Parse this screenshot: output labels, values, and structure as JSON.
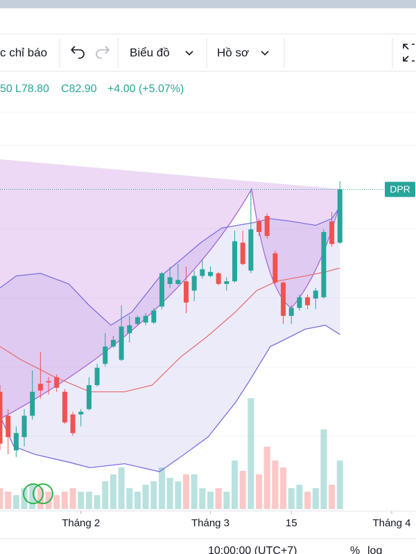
{
  "toolbar": {
    "indicators": "c chỉ báo",
    "chart": "Biểu đồ",
    "profile": "Hồ sơ"
  },
  "footer": {
    "time": "10:00:00 (UTC+7)",
    "percent": "%",
    "log": "log"
  },
  "chart_data": {
    "type": "candlestick",
    "legend": [
      "50",
      "L78.80",
      "C82.90",
      "+4.00 (+5.07%)"
    ],
    "symbol": "DPR",
    "up_color": "#26a69a",
    "down_color": "#ef5350",
    "xlim": [
      0,
      51.4
    ],
    "xticks": [
      {
        "value": 10,
        "label": "Tháng 2"
      },
      {
        "value": 26,
        "label": "Tháng 3"
      },
      {
        "value": 36,
        "label": "15"
      },
      {
        "value": 48.4,
        "label": "Tháng 4"
      }
    ],
    "ylim": [
      58.9,
      91.4
    ],
    "x": [
      0,
      1,
      2,
      3,
      4,
      5,
      6,
      7,
      8,
      9,
      10,
      11,
      12,
      13,
      14,
      15,
      16,
      17,
      18,
      19,
      20,
      21,
      22,
      23,
      24,
      25,
      26,
      27,
      28,
      29,
      30,
      31,
      32,
      33,
      34,
      35,
      36,
      37,
      38,
      39,
      40,
      41,
      42
    ],
    "candles": [
      [
        67.7,
        68.2,
        63.3,
        63.8
      ],
      [
        65.9,
        66.4,
        63.0,
        64.3
      ],
      [
        63.3,
        65.1,
        62.8,
        64.6
      ],
      [
        64.3,
        66.4,
        63.6,
        65.9
      ],
      [
        65.9,
        69.3,
        65.6,
        67.7
      ],
      [
        68.3,
        70.7,
        67.2,
        67.8
      ],
      [
        68.5,
        68.8,
        67.5,
        68.4
      ],
      [
        68.8,
        69.0,
        67.7,
        68.0
      ],
      [
        67.7,
        67.9,
        65.3,
        65.4
      ],
      [
        66.0,
        66.2,
        64.4,
        64.6
      ],
      [
        66.0,
        66.4,
        65.1,
        66.2
      ],
      [
        66.4,
        68.8,
        66.3,
        68.2
      ],
      [
        68.2,
        69.8,
        68.1,
        69.5
      ],
      [
        69.8,
        72.1,
        69.6,
        71.1
      ],
      [
        71.1,
        71.9,
        71.0,
        71.6
      ],
      [
        70.1,
        74.2,
        70.0,
        72.6
      ],
      [
        72.1,
        73.4,
        71.4,
        72.7
      ],
      [
        72.8,
        73.4,
        72.7,
        73.3
      ],
      [
        72.9,
        73.6,
        72.7,
        73.4
      ],
      [
        72.9,
        74.0,
        72.8,
        73.8
      ],
      [
        74.1,
        76.7,
        73.9,
        76.6
      ],
      [
        75.8,
        77.1,
        75.5,
        76.3
      ],
      [
        75.8,
        77.3,
        75.7,
        76.1
      ],
      [
        76.0,
        77.1,
        73.6,
        74.4
      ],
      [
        75.3,
        76.8,
        74.5,
        76.4
      ],
      [
        76.4,
        77.6,
        76.2,
        76.9
      ],
      [
        76.4,
        77.1,
        76.3,
        76.7
      ],
      [
        76.6,
        76.7,
        75.7,
        75.8
      ],
      [
        75.8,
        76.3,
        75.3,
        76.0
      ],
      [
        76.0,
        79.8,
        75.9,
        79.0
      ],
      [
        78.9,
        79.8,
        77.2,
        77.3
      ],
      [
        76.8,
        82.8,
        76.6,
        79.9
      ],
      [
        80.5,
        80.7,
        79.4,
        79.7
      ],
      [
        80.9,
        81.1,
        79.2,
        79.4
      ],
      [
        78.1,
        78.3,
        75.8,
        75.9
      ],
      [
        75.9,
        76.0,
        72.8,
        73.4
      ],
      [
        73.4,
        74.2,
        72.8,
        74.0
      ],
      [
        74.0,
        75.0,
        73.8,
        74.8
      ],
      [
        74.8,
        75.0,
        73.9,
        74.2
      ],
      [
        74.7,
        75.5,
        73.9,
        75.3
      ],
      [
        74.8,
        79.9,
        74.7,
        79.7
      ],
      [
        80.5,
        81.2,
        78.6,
        78.8
      ],
      [
        78.9,
        83.5,
        78.8,
        82.9
      ]
    ],
    "volume_lim": [
      0,
      400
    ],
    "volume": [
      30,
      25,
      20,
      30,
      35,
      30,
      25,
      20,
      25,
      30,
      25,
      25,
      20,
      40,
      50,
      60,
      30,
      25,
      35,
      40,
      60,
      45,
      40,
      50,
      50,
      30,
      25,
      30,
      25,
      70,
      55,
      160,
      50,
      90,
      70,
      60,
      30,
      35,
      25,
      30,
      115,
      35,
      70
    ],
    "bands": [
      {
        "color": "#7b6fe0",
        "x": [
          0,
          2,
          5,
          8.5,
          11,
          13.7,
          16.3,
          19.7,
          22.3,
          24.8,
          27.4,
          31.3,
          33.4,
          36,
          39,
          41,
          42
        ],
        "values": [
          75.5,
          76.4,
          76.6,
          75.8,
          74.2,
          72.7,
          73.7,
          76.3,
          77.6,
          78.9,
          80.0,
          80.4,
          80.7,
          80.5,
          80.2,
          80.7,
          81.6
        ]
      },
      {
        "color": "#7b6fe0",
        "x": [
          0,
          1.7,
          4.3,
          8.6,
          11.1,
          15.4,
          19.7,
          22.3,
          25.7,
          29.1,
          30.8,
          33.4,
          35.1,
          37.7,
          40.2,
          42
        ],
        "values": [
          65.9,
          63.6,
          63.0,
          62.4,
          62.0,
          62.3,
          61.7,
          62.8,
          64.3,
          66.9,
          68.5,
          71.1,
          71.6,
          72.4,
          72.7,
          72.0
        ]
      },
      {
        "color": "#e57373",
        "x": [
          0,
          2.6,
          6.8,
          11.1,
          15.4,
          18.8,
          22.3,
          25.7,
          29.1,
          31.7,
          34.2,
          37.7,
          40.2,
          42
        ],
        "values": [
          71.1,
          70.1,
          68.8,
          67.7,
          67.7,
          68.2,
          70.3,
          71.9,
          73.7,
          75.3,
          76.0,
          76.4,
          76.7,
          77.0
        ]
      }
    ]
  }
}
